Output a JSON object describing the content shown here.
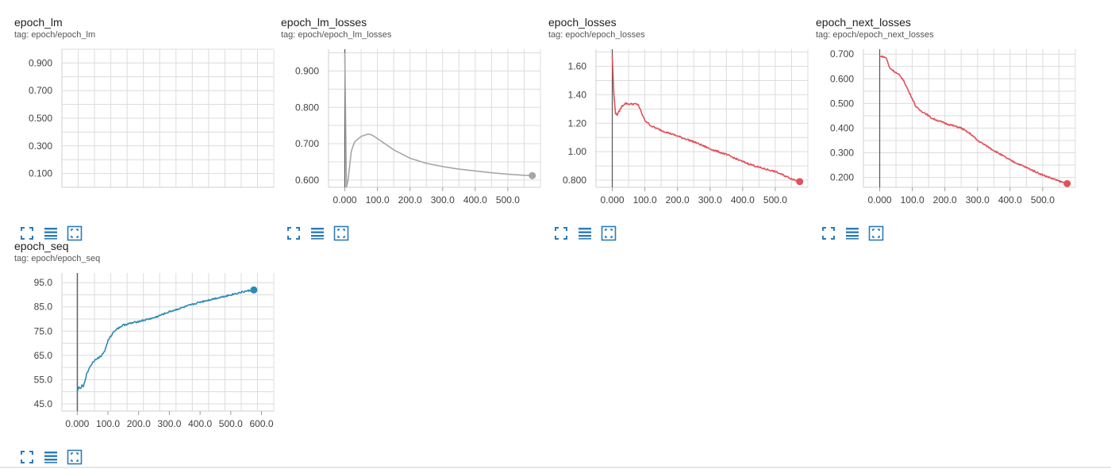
{
  "colors": {
    "gray": "#a6a6a6",
    "red": "#e0525a",
    "teal": "#2b8cb3",
    "grid": "#dcdcdc",
    "icon": "#2b7bb9"
  },
  "toolbar": {
    "icons": [
      "fullscreen-icon",
      "lines-icon",
      "fit-domain-icon"
    ]
  },
  "cards": [
    {
      "title": "epoch_lm",
      "tag": "tag: epoch/epoch_lm",
      "chart_data": {
        "type": "line",
        "title": "epoch_lm",
        "xlim": [
          0,
          1
        ],
        "ylim": [
          0,
          1
        ],
        "yticks": [
          0.1,
          0.3,
          0.5,
          0.7,
          0.9
        ],
        "yticklabels": [
          "0.100",
          "0.300",
          "0.500",
          "0.700",
          "0.900"
        ],
        "xticks": [],
        "xticklabels": [],
        "grid": true,
        "series": []
      }
    },
    {
      "title": "epoch_lm_losses",
      "tag": "tag: epoch/epoch_lm_losses",
      "chart_data": {
        "type": "line",
        "title": "epoch_lm_losses",
        "xlim": [
          -50,
          600
        ],
        "ylim": [
          0.58,
          0.96
        ],
        "yticks": [
          0.6,
          0.7,
          0.8,
          0.9
        ],
        "yticklabels": [
          "0.600",
          "0.700",
          "0.800",
          "0.900"
        ],
        "xticks": [
          0,
          100,
          200,
          300,
          400,
          500
        ],
        "xticklabels": [
          "0.000",
          "100.0",
          "200.0",
          "300.0",
          "400.0",
          "500.0"
        ],
        "grid": true,
        "series": [
          {
            "color": "gray",
            "x": [
              0,
              5,
              10,
              20,
              30,
              50,
              70,
              80,
              90,
              110,
              150,
              200,
              250,
              300,
              350,
              400,
              450,
              500,
              550,
              575
            ],
            "y": [
              0.95,
              0.58,
              0.6,
              0.68,
              0.705,
              0.72,
              0.726,
              0.725,
              0.72,
              0.708,
              0.683,
              0.66,
              0.646,
              0.637,
              0.63,
              0.625,
              0.62,
              0.616,
              0.613,
              0.612
            ]
          }
        ]
      }
    },
    {
      "title": "epoch_losses",
      "tag": "tag: epoch/epoch_losses",
      "chart_data": {
        "type": "line",
        "title": "epoch_losses",
        "xlim": [
          -50,
          600
        ],
        "ylim": [
          0.75,
          1.72
        ],
        "yticks": [
          0.8,
          1.0,
          1.2,
          1.4,
          1.6
        ],
        "yticklabels": [
          "0.800",
          "1.00",
          "1.20",
          "1.40",
          "1.60"
        ],
        "xticks": [
          0,
          100,
          200,
          300,
          400,
          500
        ],
        "xticklabels": [
          "0.000",
          "100.0",
          "200.0",
          "300.0",
          "400.0",
          "500.0"
        ],
        "grid": true,
        "series": [
          {
            "color": "red",
            "x": [
              0,
              5,
              10,
              15,
              20,
              30,
              40,
              50,
              70,
              80,
              90,
              100,
              120,
              150,
              200,
              250,
              300,
              350,
              400,
              450,
              500,
              550,
              575
            ],
            "y": [
              1.67,
              1.4,
              1.27,
              1.26,
              1.28,
              1.32,
              1.34,
              1.335,
              1.335,
              1.33,
              1.27,
              1.22,
              1.18,
              1.15,
              1.11,
              1.07,
              1.02,
              0.98,
              0.93,
              0.89,
              0.86,
              0.81,
              0.79
            ]
          }
        ]
      }
    },
    {
      "title": "epoch_next_losses",
      "tag": "tag: epoch/epoch_next_losses",
      "chart_data": {
        "type": "line",
        "title": "epoch_next_losses",
        "xlim": [
          -50,
          600
        ],
        "ylim": [
          0.16,
          0.72
        ],
        "yticks": [
          0.2,
          0.3,
          0.4,
          0.5,
          0.6,
          0.7
        ],
        "yticklabels": [
          "0.200",
          "0.300",
          "0.400",
          "0.500",
          "0.600",
          "0.700"
        ],
        "xticks": [
          0,
          100,
          200,
          300,
          400,
          500
        ],
        "xticklabels": [
          "0.000",
          "100.0",
          "200.0",
          "300.0",
          "400.0",
          "500.0"
        ],
        "grid": true,
        "series": [
          {
            "color": "red",
            "x": [
              0,
              10,
              20,
              30,
              40,
              50,
              60,
              70,
              80,
              90,
              100,
              110,
              120,
              140,
              160,
              200,
              250,
              280,
              300,
              350,
              400,
              450,
              500,
              550,
              575
            ],
            "y": [
              0.69,
              0.69,
              0.685,
              0.645,
              0.635,
              0.625,
              0.615,
              0.6,
              0.575,
              0.545,
              0.52,
              0.49,
              0.475,
              0.46,
              0.44,
              0.42,
              0.4,
              0.375,
              0.35,
              0.31,
              0.27,
              0.24,
              0.21,
              0.185,
              0.175
            ]
          }
        ]
      }
    },
    {
      "title": "epoch_seq",
      "tag": "tag: epoch/epoch_seq",
      "chart_data": {
        "type": "line",
        "title": "epoch_seq",
        "xlim": [
          -50,
          640
        ],
        "ylim": [
          42,
          99
        ],
        "yticks": [
          45,
          55,
          65,
          75,
          85,
          95
        ],
        "yticklabels": [
          "45.0",
          "55.0",
          "65.0",
          "75.0",
          "85.0",
          "95.0"
        ],
        "xticks": [
          0,
          100,
          200,
          300,
          400,
          500,
          600
        ],
        "xticklabels": [
          "0.000",
          "100.0",
          "200.0",
          "300.0",
          "400.0",
          "500.0",
          "600.0"
        ],
        "grid": true,
        "series": [
          {
            "color": "teal",
            "x": [
              0,
              5,
              10,
              15,
              20,
              30,
              40,
              50,
              60,
              70,
              80,
              90,
              100,
              110,
              120,
              130,
              150,
              200,
              250,
              300,
              350,
              400,
              450,
              500,
              550,
              575
            ],
            "y": [
              50,
              52,
              51,
              52.5,
              52,
              57,
              60,
              62,
              63.5,
              64,
              65,
              67,
              71,
              73,
              75,
              76,
              77.5,
              79,
              80.5,
              83,
              85,
              87,
              88.5,
              90,
              91.5,
              92
            ]
          }
        ]
      }
    }
  ]
}
